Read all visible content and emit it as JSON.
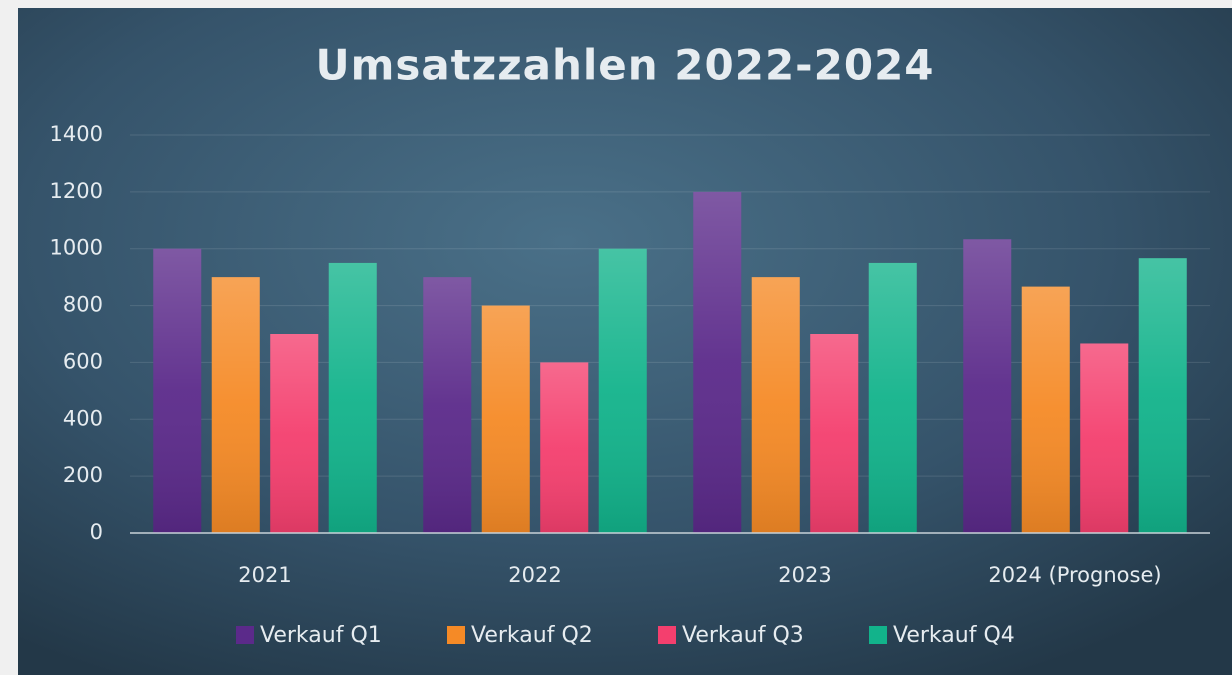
{
  "chart_data": {
    "type": "bar",
    "title": "Umsatzzahlen 2022-2024",
    "categories": [
      "2021",
      "2022",
      "2023",
      "2024 (Prognose)"
    ],
    "series": [
      {
        "name": "Verkauf Q1",
        "color": "#5b2a8a",
        "values": [
          1000,
          900,
          1200,
          1033.33
        ]
      },
      {
        "name": "Verkauf Q2",
        "color": "#f58a26",
        "values": [
          900,
          800,
          900,
          866.67
        ]
      },
      {
        "name": "Verkauf Q3",
        "color": "#f43f6e",
        "values": [
          700,
          600,
          700,
          666.67
        ]
      },
      {
        "name": "Verkauf Q4",
        "color": "#12b38b",
        "values": [
          950,
          1000,
          950,
          966.67
        ]
      }
    ],
    "ylim": [
      0,
      1400
    ],
    "yticks": [
      0,
      200,
      400,
      600,
      800,
      1000,
      1200,
      1400
    ],
    "grid": true,
    "legend": "bottom"
  }
}
